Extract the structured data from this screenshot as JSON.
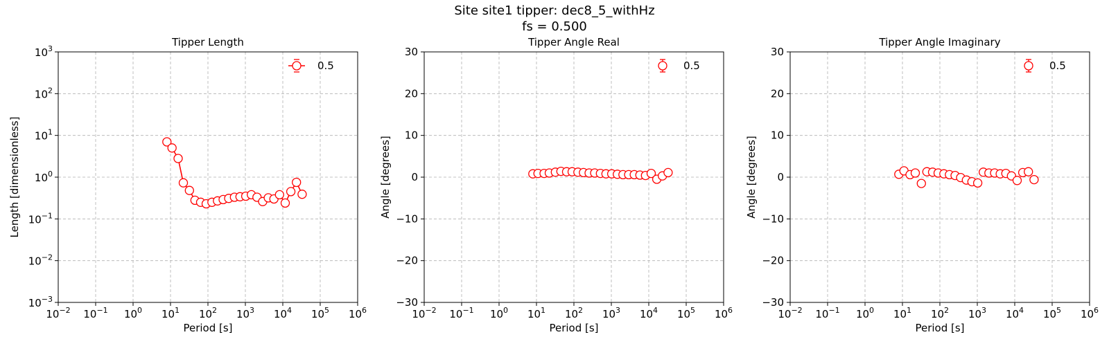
{
  "figure": {
    "suptitle_line1": "Site site1 tipper: dec8_5_withHz",
    "suptitle_line2": "fs = 0.500"
  },
  "colors": {
    "series": "#ff0000",
    "grid": "#b0b0b0",
    "axes": "#000000"
  },
  "chart_data": [
    {
      "type": "line",
      "title": "Tipper Length",
      "xlabel": "Period [s]",
      "ylabel": "Length [dimensionless]",
      "xscale": "log",
      "yscale": "log",
      "xlim": [
        0.01,
        1000000
      ],
      "ylim": [
        0.001,
        1000
      ],
      "xtick_exponents": [
        -2,
        -1,
        0,
        1,
        2,
        3,
        4,
        5,
        6
      ],
      "ytick_exponents": [
        -3,
        -2,
        -1,
        0,
        1,
        2,
        3
      ],
      "grid": true,
      "legend_position": "top-right",
      "series": [
        {
          "name": "0.5",
          "marker": "open-circle",
          "connected": true,
          "x": [
            8,
            11,
            16,
            22,
            32,
            45,
            64,
            90,
            128,
            180,
            256,
            360,
            512,
            720,
            1024,
            1450,
            2050,
            2900,
            4100,
            5800,
            8200,
            11600,
            16400,
            23200,
            32800
          ],
          "y": [
            7.0,
            5.0,
            2.8,
            0.73,
            0.48,
            0.28,
            0.25,
            0.23,
            0.25,
            0.27,
            0.29,
            0.31,
            0.33,
            0.34,
            0.35,
            0.38,
            0.33,
            0.26,
            0.32,
            0.3,
            0.38,
            0.24,
            0.45,
            0.75,
            0.39
          ]
        }
      ]
    },
    {
      "type": "scatter",
      "title": "Tipper Angle Real",
      "xlabel": "Period [s]",
      "ylabel": "Angle [degrees]",
      "xscale": "log",
      "yscale": "linear",
      "xlim": [
        0.01,
        1000000
      ],
      "ylim": [
        -30,
        30
      ],
      "xtick_exponents": [
        -2,
        -1,
        0,
        1,
        2,
        3,
        4,
        5,
        6
      ],
      "yticks": [
        -30,
        -20,
        -10,
        0,
        10,
        20,
        30
      ],
      "grid": true,
      "legend_position": "top-right",
      "series": [
        {
          "name": "0.5",
          "marker": "open-circle",
          "connected": false,
          "x": [
            8,
            11,
            16,
            22,
            32,
            45,
            64,
            90,
            128,
            180,
            256,
            360,
            512,
            720,
            1024,
            1450,
            2050,
            2900,
            4100,
            5800,
            8200,
            11600,
            16400,
            23200,
            32800
          ],
          "y": [
            0.8,
            0.9,
            0.9,
            1.0,
            1.2,
            1.4,
            1.3,
            1.3,
            1.2,
            1.1,
            1.0,
            1.0,
            0.9,
            0.8,
            0.8,
            0.7,
            0.6,
            0.6,
            0.6,
            0.5,
            0.4,
            0.9,
            -0.5,
            0.3,
            1.1
          ]
        }
      ]
    },
    {
      "type": "scatter",
      "title": "Tipper Angle Imaginary",
      "xlabel": "Period [s]",
      "ylabel": "Angle [degrees]",
      "xscale": "log",
      "yscale": "linear",
      "xlim": [
        0.01,
        1000000
      ],
      "ylim": [
        -30,
        30
      ],
      "xtick_exponents": [
        -2,
        -1,
        0,
        1,
        2,
        3,
        4,
        5,
        6
      ],
      "yticks": [
        -30,
        -20,
        -10,
        0,
        10,
        20,
        30
      ],
      "grid": true,
      "legend_position": "top-right",
      "series": [
        {
          "name": "0.5",
          "marker": "open-circle",
          "connected": false,
          "x": [
            8,
            11,
            16,
            22,
            32,
            45,
            64,
            90,
            128,
            180,
            256,
            360,
            512,
            720,
            1024,
            1450,
            2050,
            2900,
            4100,
            5800,
            8200,
            11600,
            16400,
            23200,
            32800
          ],
          "y": [
            0.7,
            1.5,
            0.6,
            1.0,
            -1.5,
            1.3,
            1.2,
            1.0,
            0.8,
            0.6,
            0.4,
            -0.1,
            -0.7,
            -1.1,
            -1.4,
            1.2,
            1.0,
            1.0,
            0.8,
            0.9,
            0.3,
            -0.8,
            1.1,
            1.3,
            -0.6
          ]
        }
      ]
    }
  ]
}
